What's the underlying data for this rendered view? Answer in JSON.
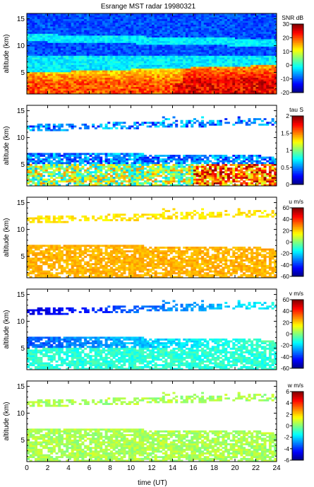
{
  "chart_data": [
    {
      "type": "heatmap",
      "title": "Esrange MST radar 19980321",
      "xlabel": "",
      "ylabel": "altitude (km)",
      "xlim": [
        0,
        24
      ],
      "ylim": [
        1,
        16
      ],
      "yticks": [
        5,
        10,
        15
      ],
      "colorbar": {
        "label": "SNR dB",
        "range": [
          -20,
          30
        ],
        "ticks": [
          30,
          20,
          10,
          0,
          -10,
          -20
        ]
      },
      "colormap": "jet",
      "field": "snr",
      "coverage": "full"
    },
    {
      "type": "heatmap",
      "title": "",
      "xlabel": "",
      "ylabel": "altitude (km)",
      "xlim": [
        0,
        24
      ],
      "ylim": [
        1,
        16
      ],
      "yticks": [
        5,
        10,
        15
      ],
      "colorbar": {
        "label": "tau S",
        "range": [
          0,
          2
        ],
        "ticks": [
          2,
          1.5,
          1,
          0.5,
          0
        ]
      },
      "colormap": "jet",
      "field": "tau",
      "coverage": "sparse"
    },
    {
      "type": "heatmap",
      "title": "",
      "xlabel": "",
      "ylabel": "altitude (km)",
      "xlim": [
        0,
        24
      ],
      "ylim": [
        1,
        16
      ],
      "yticks": [
        5,
        10,
        15
      ],
      "colorbar": {
        "label": "u m/s",
        "range": [
          -60,
          60
        ],
        "ticks": [
          60,
          40,
          20,
          0,
          -20,
          -40,
          -60
        ]
      },
      "colormap": "jet",
      "field": "u",
      "coverage": "sparse"
    },
    {
      "type": "heatmap",
      "title": "",
      "xlabel": "",
      "ylabel": "altitude (km)",
      "xlim": [
        0,
        24
      ],
      "ylim": [
        1,
        16
      ],
      "yticks": [
        5,
        10,
        15
      ],
      "colorbar": {
        "label": "v m/s",
        "range": [
          -60,
          60
        ],
        "ticks": [
          60,
          40,
          20,
          0,
          -20,
          -40,
          -60
        ]
      },
      "colormap": "jet",
      "field": "v",
      "coverage": "sparse"
    },
    {
      "type": "heatmap",
      "title": "",
      "xlabel": "time (UT)",
      "ylabel": "altitude (km)",
      "xlim": [
        0,
        24
      ],
      "ylim": [
        1,
        16
      ],
      "yticks": [
        5,
        10,
        15
      ],
      "xticks": [
        0,
        2,
        4,
        6,
        8,
        10,
        12,
        14,
        16,
        18,
        20,
        22,
        24
      ],
      "colorbar": {
        "label": "w m/s",
        "range": [
          -6,
          6
        ],
        "ticks": [
          6,
          4,
          2,
          0,
          -2,
          -4,
          -6
        ]
      },
      "colormap": "jet",
      "field": "w",
      "coverage": "sparse"
    }
  ]
}
